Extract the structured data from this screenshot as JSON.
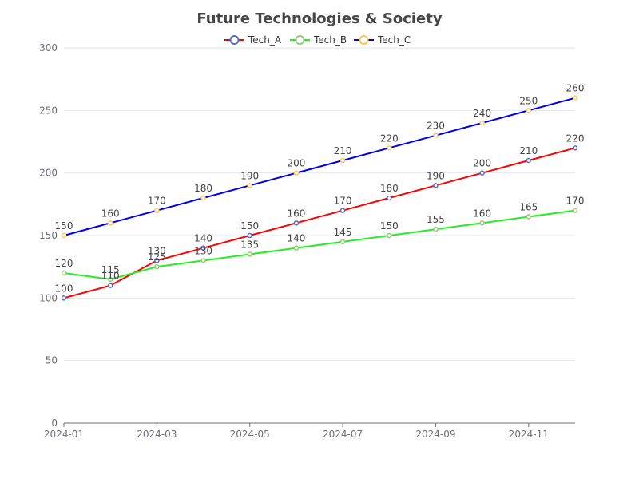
{
  "chart_data": {
    "type": "line",
    "title": "Future Technologies & Society",
    "x": [
      "2024-01",
      "2024-02",
      "2024-03",
      "2024-04",
      "2024-05",
      "2024-06",
      "2024-07",
      "2024-08",
      "2024-09",
      "2024-10",
      "2024-11",
      "2024-12"
    ],
    "x_tick_labels": [
      "2024-01",
      "2024-03",
      "2024-05",
      "2024-07",
      "2024-09",
      "2024-11"
    ],
    "y_ticks": [
      0,
      50,
      100,
      150,
      200,
      250,
      300
    ],
    "ylim": [
      0,
      300
    ],
    "grid": "horizontal",
    "legend_position": "top-center",
    "series": [
      {
        "name": "Tech_A",
        "line_color": "#ff0000",
        "marker_color": "#5470c6",
        "values": [
          100,
          110,
          130,
          140,
          150,
          160,
          170,
          180,
          190,
          200,
          210,
          220
        ]
      },
      {
        "name": "Tech_B",
        "line_color": "#22ee22",
        "marker_color": "#91cc75",
        "values": [
          120,
          115,
          125,
          130,
          135,
          140,
          145,
          150,
          155,
          160,
          165,
          170
        ]
      },
      {
        "name": "Tech_C",
        "line_color": "#0000ee",
        "marker_color": "#fac858",
        "values": [
          150,
          160,
          170,
          180,
          190,
          200,
          210,
          220,
          230,
          240,
          250,
          260
        ]
      }
    ]
  }
}
